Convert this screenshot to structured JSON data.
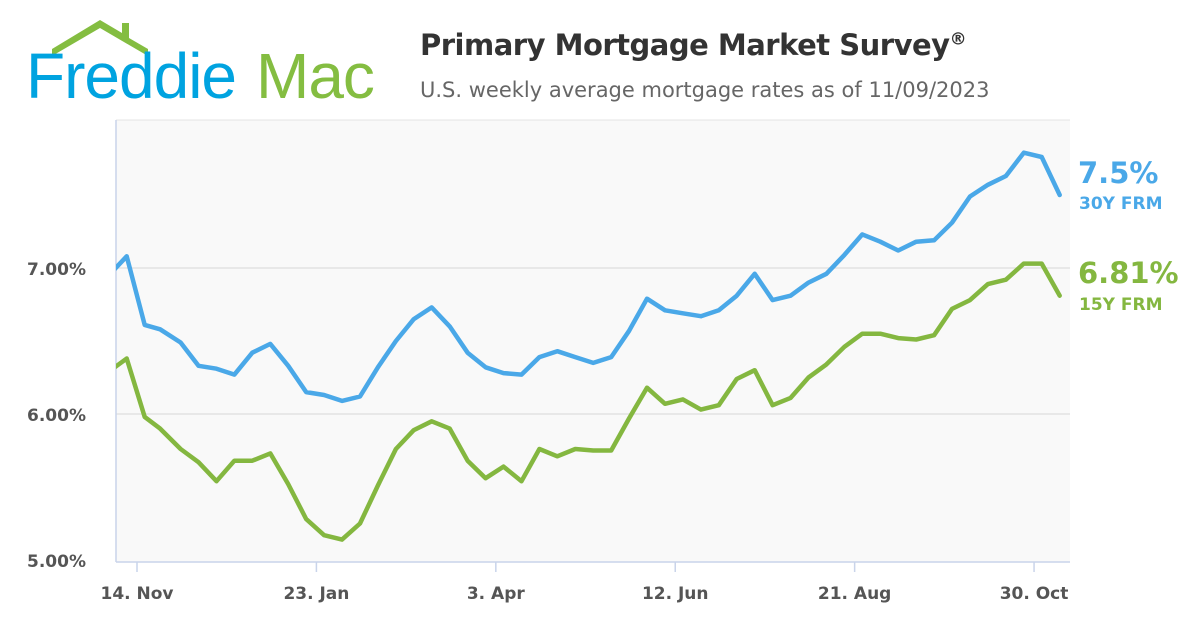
{
  "logo": {
    "text_left": "Freddie",
    "text_right": "Mac",
    "colors": {
      "blue": "#00a3e0",
      "green": "#84bd41"
    }
  },
  "header": {
    "title": "Primary Mortgage Market Survey",
    "title_mark": "®",
    "subtitle": "U.S. weekly average mortgage rates as of 11/09/2023"
  },
  "chart_data": {
    "type": "line",
    "title": "Primary Mortgage Market Survey®",
    "subtitle": "U.S. weekly average mortgage rates as of 11/09/2023",
    "xlabel": "",
    "ylabel": "",
    "ylim": [
      5,
      8
    ],
    "yticks": [
      5,
      6,
      7
    ],
    "ytick_labels": [
      "5.00%",
      "6.00%",
      "7.00%"
    ],
    "xticks": [
      "2022-11-14",
      "2023-01-23",
      "2023-04-03",
      "2023-06-12",
      "2023-08-21",
      "2023-10-30"
    ],
    "xtick_labels": [
      "14. Nov",
      "23. Jan",
      "3. Apr",
      "12. Jun",
      "21. Aug",
      "30. Oct"
    ],
    "grid": true,
    "x": [
      "2022-11-03",
      "2022-11-10",
      "2022-11-17",
      "2022-11-23",
      "2022-12-01",
      "2022-12-08",
      "2022-12-15",
      "2022-12-22",
      "2022-12-29",
      "2023-01-05",
      "2023-01-12",
      "2023-01-19",
      "2023-01-26",
      "2023-02-02",
      "2023-02-09",
      "2023-02-16",
      "2023-02-23",
      "2023-03-02",
      "2023-03-09",
      "2023-03-16",
      "2023-03-23",
      "2023-03-30",
      "2023-04-06",
      "2023-04-13",
      "2023-04-20",
      "2023-04-27",
      "2023-05-04",
      "2023-05-11",
      "2023-05-18",
      "2023-05-25",
      "2023-06-01",
      "2023-06-08",
      "2023-06-15",
      "2023-06-22",
      "2023-06-29",
      "2023-07-06",
      "2023-07-13",
      "2023-07-20",
      "2023-07-27",
      "2023-08-03",
      "2023-08-10",
      "2023-08-17",
      "2023-08-24",
      "2023-08-31",
      "2023-09-07",
      "2023-09-14",
      "2023-09-21",
      "2023-09-28",
      "2023-10-05",
      "2023-10-12",
      "2023-10-19",
      "2023-10-26",
      "2023-11-02",
      "2023-11-09"
    ],
    "series": [
      {
        "name": "30Y FRM",
        "color": "#4aa8e8",
        "last_label": "7.5%",
        "values": [
          6.95,
          7.08,
          6.61,
          6.58,
          6.49,
          6.33,
          6.31,
          6.27,
          6.42,
          6.48,
          6.33,
          6.15,
          6.13,
          6.09,
          6.12,
          6.32,
          6.5,
          6.65,
          6.73,
          6.6,
          6.42,
          6.32,
          6.28,
          6.27,
          6.39,
          6.43,
          6.39,
          6.35,
          6.39,
          6.57,
          6.79,
          6.71,
          6.69,
          6.67,
          6.71,
          6.81,
          6.96,
          6.78,
          6.81,
          6.9,
          6.96,
          7.09,
          7.23,
          7.18,
          7.12,
          7.18,
          7.19,
          7.31,
          7.49,
          7.57,
          7.63,
          7.79,
          7.76,
          7.5
        ]
      },
      {
        "name": "15Y FRM",
        "color": "#84b740",
        "last_label": "6.81%",
        "values": [
          6.29,
          6.38,
          5.98,
          5.9,
          5.76,
          5.67,
          5.54,
          5.68,
          5.68,
          5.73,
          5.52,
          5.28,
          5.17,
          5.14,
          5.25,
          5.51,
          5.76,
          5.89,
          5.95,
          5.9,
          5.68,
          5.56,
          5.64,
          5.54,
          5.76,
          5.71,
          5.76,
          5.75,
          5.75,
          5.97,
          6.18,
          6.07,
          6.1,
          6.03,
          6.06,
          6.24,
          6.3,
          6.06,
          6.11,
          6.25,
          6.34,
          6.46,
          6.55,
          6.55,
          6.52,
          6.51,
          6.54,
          6.72,
          6.78,
          6.89,
          6.92,
          7.03,
          7.03,
          6.81
        ]
      }
    ]
  }
}
